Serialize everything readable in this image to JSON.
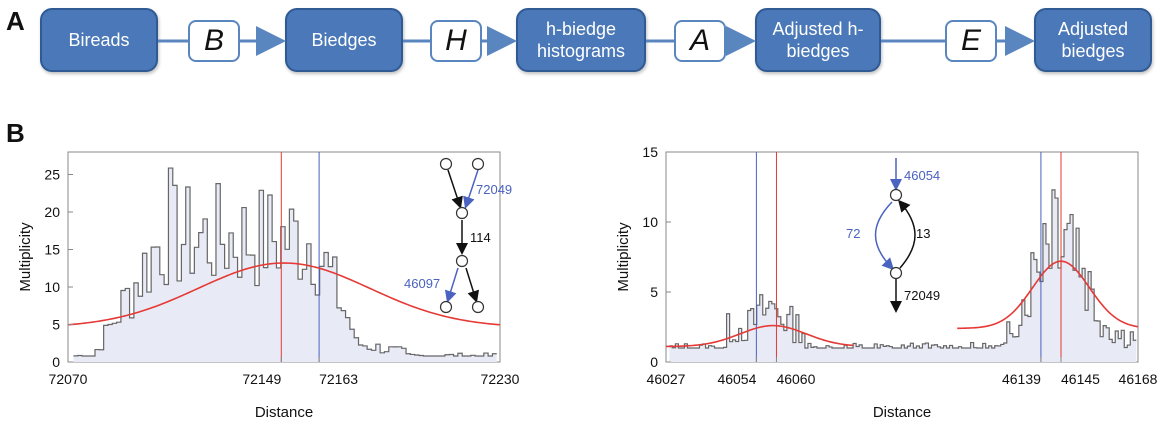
{
  "panels": {
    "a": "A",
    "b": "B"
  },
  "pipeline": {
    "nodes": [
      {
        "label": "Bireads"
      },
      {
        "label": "Biedges"
      },
      {
        "label": "h-biedge histograms"
      },
      {
        "label": "Adjusted h-biedges"
      },
      {
        "label": "Adjusted biedges"
      }
    ],
    "ops": [
      "B",
      "H",
      "A",
      "E"
    ]
  },
  "colors": {
    "node_fill": "#4a78b8",
    "histogram": "#666666",
    "fill": "#e8eaf6",
    "fit": "#e53935",
    "blue": "#4a62c0"
  },
  "chart_data": [
    {
      "type": "histogram",
      "xlabel": "Distance",
      "ylabel": "Multiplicity",
      "xlim": [
        72070,
        72230
      ],
      "ylim": [
        0,
        28
      ],
      "xticks": [
        72070,
        72149,
        72163,
        72230
      ],
      "yticks": [
        0,
        5,
        10,
        15,
        20,
        25
      ],
      "fit_peak": 13.2,
      "vlines": [
        {
          "x": 72149,
          "color": "#e53935"
        },
        {
          "x": 72163,
          "color": "#4a62c0"
        }
      ],
      "inset": {
        "labels": [
          "72049",
          "114",
          "46097"
        ]
      }
    },
    {
      "type": "histogram",
      "xlabel": "Distance",
      "ylabel": "Multiplicity",
      "xlim": [
        46027,
        46168
      ],
      "ylim": [
        0,
        15
      ],
      "xticks": [
        46027,
        46054,
        46060,
        46139,
        46145,
        46168
      ],
      "yticks": [
        0,
        5,
        10,
        15
      ],
      "fit_peaks": [
        2.6,
        7.2
      ],
      "vlines": [
        {
          "x": 46054,
          "color": "#4a62c0"
        },
        {
          "x": 46060,
          "color": "#e53935"
        },
        {
          "x": 46139,
          "color": "#4a62c0"
        },
        {
          "x": 46145,
          "color": "#e53935"
        }
      ],
      "inset": {
        "labels": [
          "46054",
          "72",
          "13",
          "72049"
        ]
      }
    }
  ]
}
